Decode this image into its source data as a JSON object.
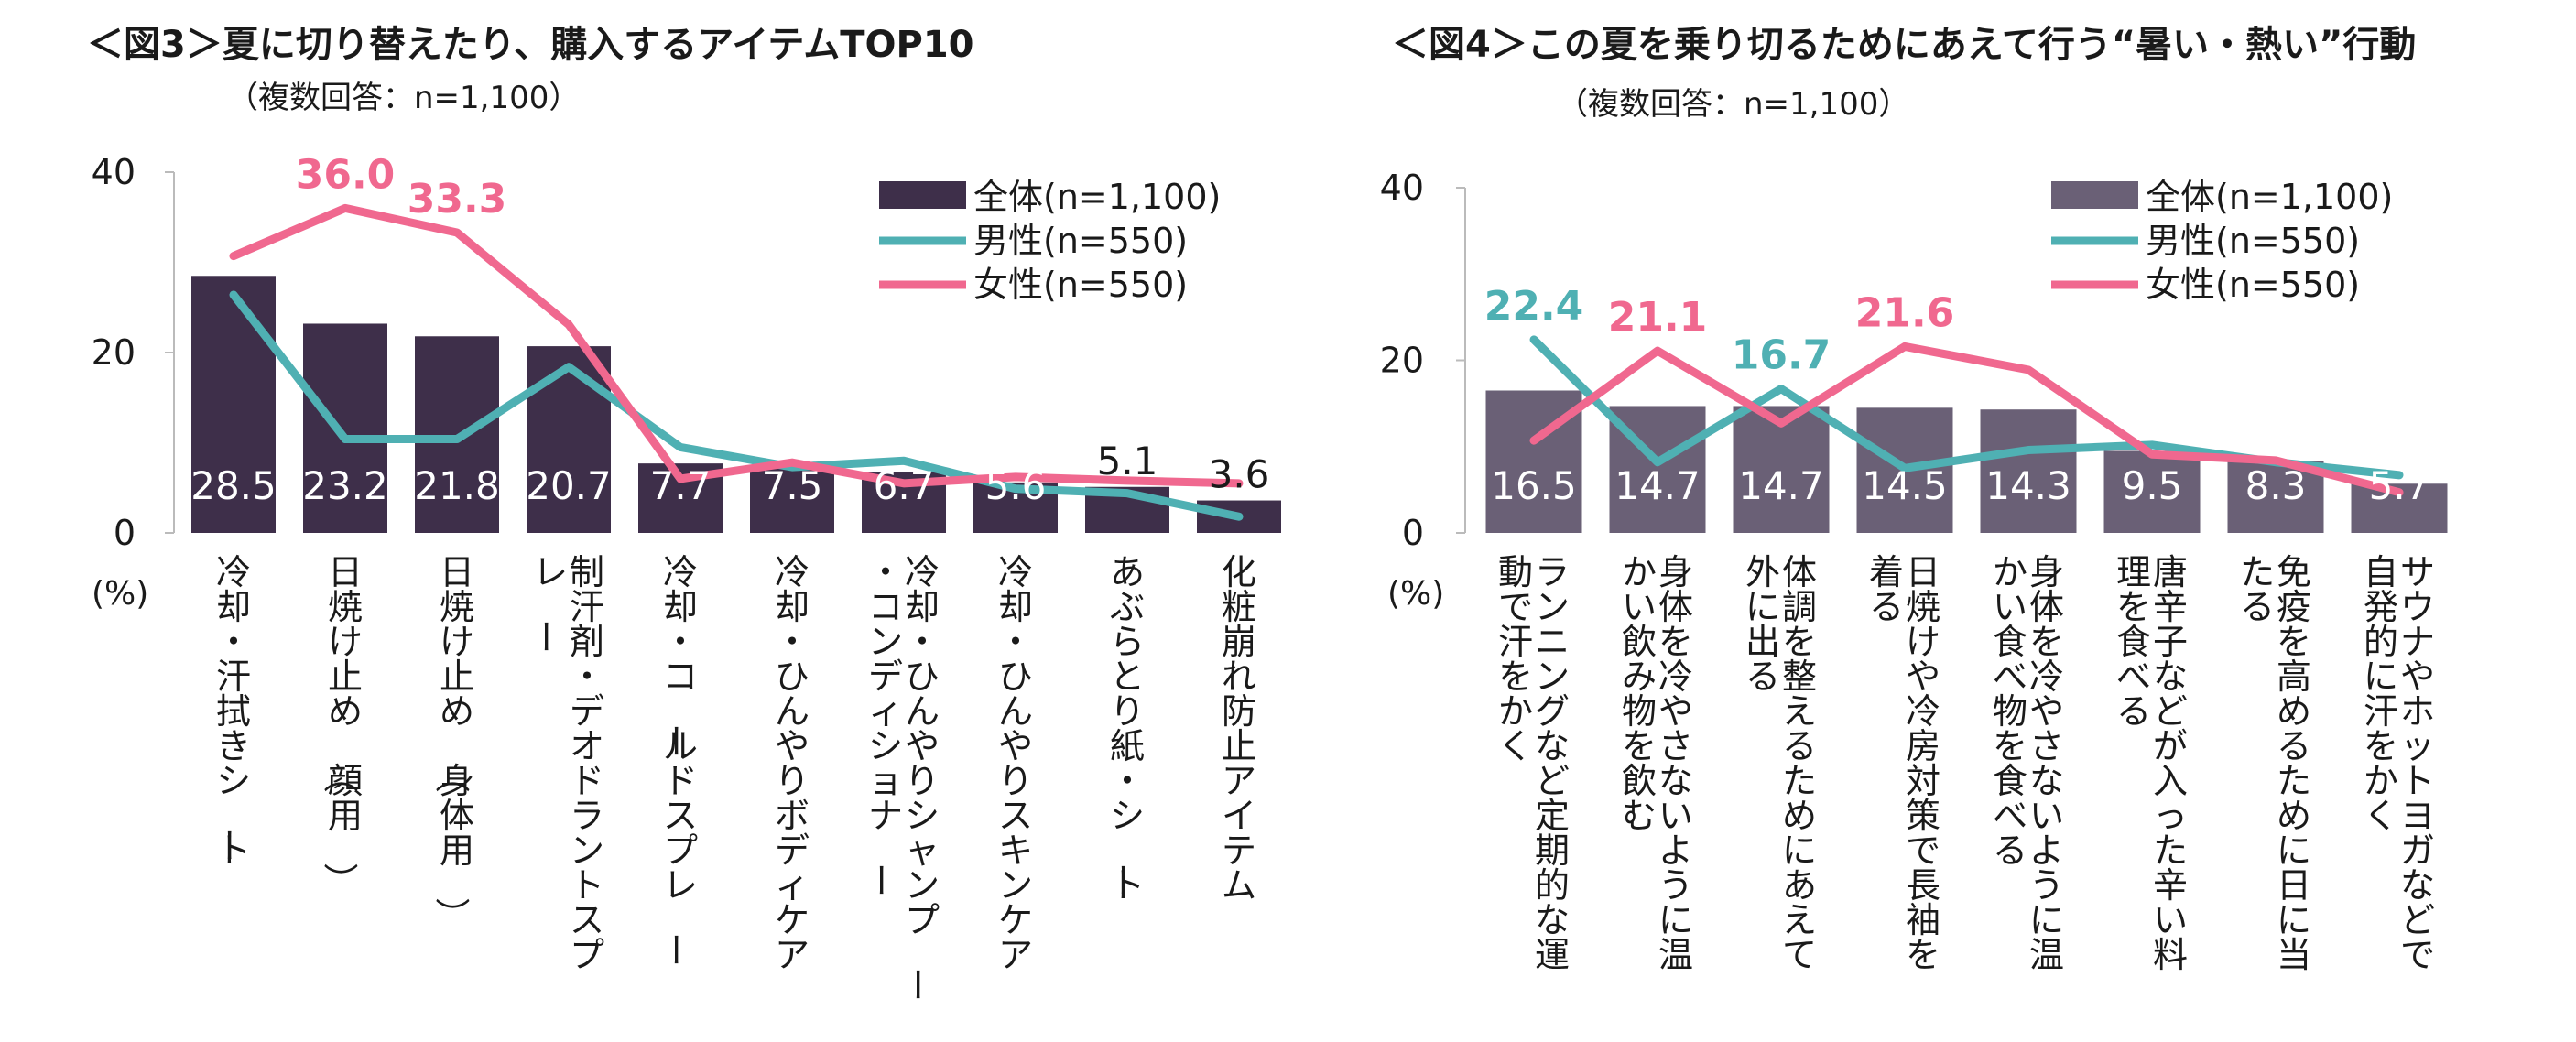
{
  "chart_data": [
    {
      "type": "bar",
      "title": "＜図3＞夏に切り替えたり、購入するアイテムTOP10",
      "subtitle": "（複数回答：n=1,100）",
      "unit_label": "(%)",
      "ylim": [
        0,
        40
      ],
      "yticks": [
        "0",
        "20",
        "40"
      ],
      "categories": [
        "冷却・汗拭きシート",
        "日焼け止め（顔用）",
        "日焼け止め（身体用）",
        "制汗剤・デオドラントスプレー",
        "冷却・コールドスプレー",
        "冷却・ひんやりボディケア",
        "冷却・ひんやりシャンプー・コンディショナー",
        "冷却・ひんやりスキンケア",
        "あぶらとり紙・シート",
        "化粧崩れ防止アイテム"
      ],
      "series": [
        {
          "name": "全体(n=1,100)",
          "type": "bar",
          "color": "#3e2f4a",
          "values": [
            28.5,
            23.2,
            21.8,
            20.7,
            7.7,
            7.5,
            6.7,
            5.6,
            5.1,
            3.6
          ],
          "labels": [
            "28.5",
            "23.2",
            "21.8",
            "20.7",
            "7.7",
            "7.5",
            "6.7",
            "5.6",
            "5.1",
            "3.6"
          ]
        },
        {
          "name": "男性(n=550)",
          "type": "line",
          "color": "#4fb0b3",
          "values": [
            26.4,
            10.4,
            10.4,
            18.4,
            9.5,
            7.3,
            8.0,
            4.9,
            4.4,
            1.8
          ]
        },
        {
          "name": "女性(n=550)",
          "type": "line",
          "color": "#f0688f",
          "values": [
            30.7,
            36.0,
            33.3,
            23.1,
            6.0,
            7.8,
            5.5,
            6.2,
            5.8,
            5.5
          ]
        }
      ],
      "callouts": [
        {
          "text": "36.0",
          "index": 1,
          "series": 2,
          "color": "#f0688f"
        },
        {
          "text": "33.3",
          "index": 2,
          "series": 2,
          "color": "#f0688f"
        }
      ]
    },
    {
      "type": "bar",
      "title": "＜図4＞この夏を乗り切るためにあえて行う“暑い・熱い”行動",
      "subtitle": "（複数回答：n=1,100）",
      "unit_label": "(%)",
      "ylim": [
        0,
        40
      ],
      "yticks": [
        "0",
        "20",
        "40"
      ],
      "categories": [
        "ランニングなど定期的な運動で汗をかく",
        "身体を冷やさないように温かい飲み物を飲む",
        "体調を整えるためにあえて外に出る",
        "日焼けや冷房対策で長袖を着る",
        "身体を冷やさないように温かい食べ物を食べる",
        "唐辛子などが入った辛い料理を食べる",
        "免疫を高めるために日に当たる",
        "サウナやホットヨガなどで自発的に汗をかく"
      ],
      "series": [
        {
          "name": "全体(n=1,100)",
          "type": "bar",
          "color": "#6a6076",
          "values": [
            16.5,
            14.7,
            14.7,
            14.5,
            14.3,
            9.5,
            8.3,
            5.7
          ],
          "labels": [
            "16.5",
            "14.7",
            "14.7",
            "14.5",
            "14.3",
            "9.5",
            "8.3",
            "5.7"
          ]
        },
        {
          "name": "男性(n=550)",
          "type": "line",
          "color": "#4fb0b3",
          "values": [
            22.4,
            8.2,
            16.7,
            7.5,
            9.6,
            10.2,
            8.2,
            6.7
          ]
        },
        {
          "name": "女性(n=550)",
          "type": "line",
          "color": "#f0688f",
          "values": [
            10.7,
            21.1,
            12.7,
            21.6,
            18.9,
            9.1,
            8.4,
            4.7
          ]
        }
      ],
      "callouts": [
        {
          "text": "22.4",
          "index": 0,
          "series": 1,
          "color": "#4fb0b3"
        },
        {
          "text": "21.1",
          "index": 1,
          "series": 2,
          "color": "#f0688f"
        },
        {
          "text": "16.7",
          "index": 2,
          "series": 1,
          "color": "#4fb0b3"
        },
        {
          "text": "21.6",
          "index": 3,
          "series": 2,
          "color": "#f0688f"
        }
      ]
    }
  ]
}
